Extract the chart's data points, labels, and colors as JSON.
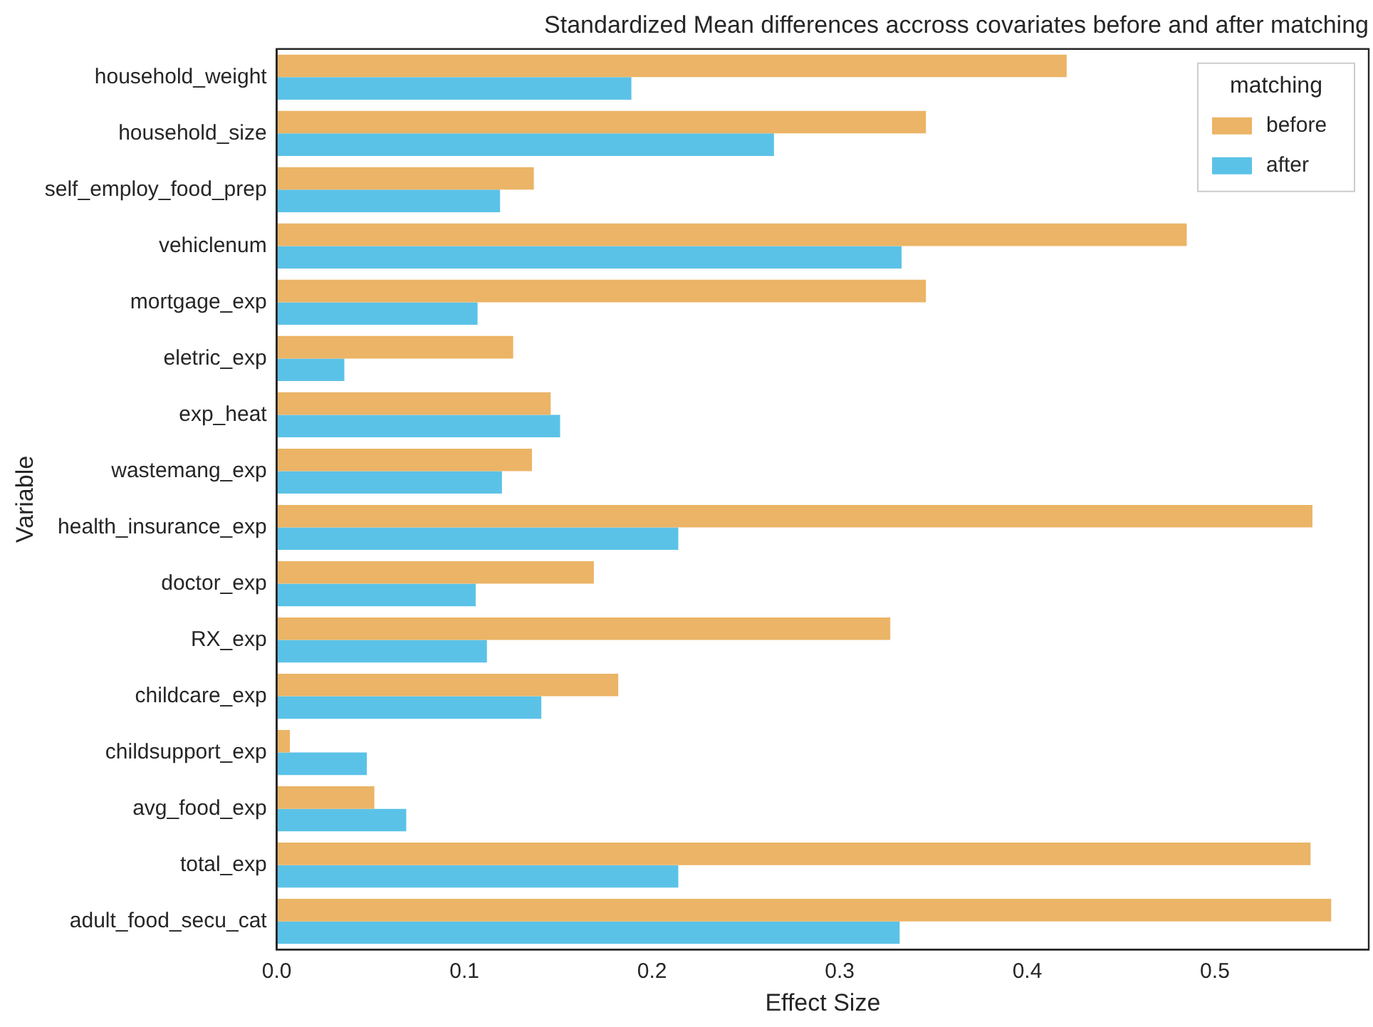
{
  "chart_data": {
    "type": "bar",
    "orientation": "horizontal",
    "title": "Standardized Mean differences accross covariates before and after matching",
    "xlabel": "Effect Size",
    "ylabel": "Variable",
    "legend_title": "matching",
    "legend": "top right",
    "grid": false,
    "categories": [
      "household_weight",
      "household_size",
      "self_employ_food_prep",
      "vehiclenum",
      "mortgage_exp",
      "eletric_exp",
      "exp_heat",
      "wastemang_exp",
      "health_insurance_exp",
      "doctor_exp",
      "RX_exp",
      "childcare_exp",
      "childsupport_exp",
      "avg_food_exp",
      "total_exp",
      "adult_food_secu_cat"
    ],
    "series": [
      {
        "name": "before",
        "color": "#ebb466",
        "values": [
          0.421,
          0.346,
          0.137,
          0.485,
          0.346,
          0.126,
          0.146,
          0.136,
          0.552,
          0.169,
          0.327,
          0.182,
          0.007,
          0.052,
          0.551,
          0.562
        ]
      },
      {
        "name": "after",
        "color": "#5bc2e7",
        "values": [
          0.189,
          0.265,
          0.119,
          0.333,
          0.107,
          0.036,
          0.151,
          0.12,
          0.214,
          0.106,
          0.112,
          0.141,
          0.048,
          0.069,
          0.214,
          0.332
        ]
      }
    ],
    "xlim": [
      0,
      0.582
    ],
    "xticks": [
      {
        "value": 0,
        "label": "0.0"
      },
      0.1,
      0.2,
      0.3,
      0.4,
      0.5
    ]
  }
}
